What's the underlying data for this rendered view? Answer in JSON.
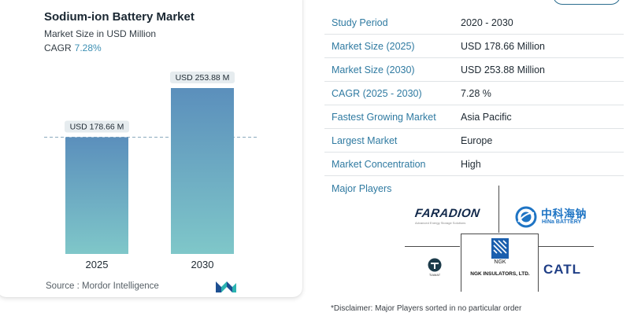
{
  "left_card": {
    "title": "Sodium-ion Battery Market",
    "subtitle": "Market Size in USD Million",
    "cagr_label": "CAGR",
    "cagr_value": "7.28%",
    "source": "Source :  Mordor Intelligence"
  },
  "chart_data": {
    "type": "bar",
    "categories": [
      "2025",
      "2030"
    ],
    "values": [
      178.66,
      253.88
    ],
    "data_labels": [
      "USD 178.66 M",
      "USD 253.88 M"
    ],
    "title": "Sodium-ion Battery Market",
    "subtitle": "Market Size in USD Million",
    "xlabel": "",
    "ylabel": "",
    "ylim": [
      0,
      253.88
    ],
    "grid": false,
    "reference_line": "dashed line at 2025 value",
    "colors": {
      "bar_top": "#5b8fbc",
      "bar_bottom": "#7fc7c9",
      "label_bg": "#e6ecef"
    }
  },
  "table": {
    "rows": [
      {
        "key": "Study Period",
        "value": "2020 - 2030"
      },
      {
        "key": "Market Size (2025)",
        "value": "USD 178.66 Million"
      },
      {
        "key": "Market Size (2030)",
        "value": "USD 253.88 Million"
      },
      {
        "key": "CAGR (2025 - 2030)",
        "value": "7.28 %"
      },
      {
        "key": "Fastest Growing Market",
        "value": "Asia Pacific"
      },
      {
        "key": "Largest Market",
        "value": "Europe"
      },
      {
        "key": "Market Concentration",
        "value": "High"
      }
    ],
    "major_players_label": "Major Players"
  },
  "logos": {
    "faradion": "FARADION",
    "faradion_tag": "Advanced Energy Storage Solutions",
    "hina_cn": "中科海钠",
    "hina_en": "HiNa BATTERY",
    "tiamat": "TIAMAT",
    "ngk_mark": "NGK",
    "ngk_name": "NGK INSULATORS, LTD.",
    "catl": "CATL"
  },
  "disclaimer": "*Disclaimer: Major Players sorted in no particular order",
  "colors": {
    "accent": "#2f7aa1",
    "cagr": "#3c8fb3",
    "mi_logo_blue": "#1d4f91",
    "mi_logo_teal": "#2bb3b1"
  }
}
